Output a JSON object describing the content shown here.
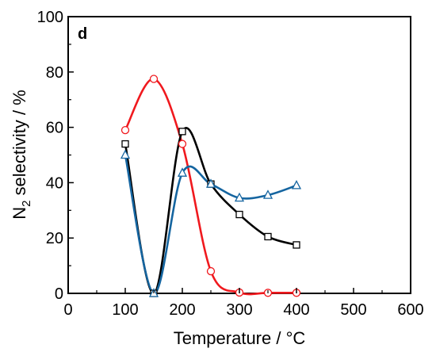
{
  "chart_data": {
    "type": "line",
    "panel_label": "d",
    "xlabel": "Temperature / °C",
    "ylabel_main": "N",
    "ylabel_sub": "2",
    "ylabel_rest": " selectivity / %",
    "xlim": [
      0,
      600
    ],
    "ylim": [
      0,
      100
    ],
    "xticks": [
      0,
      100,
      200,
      300,
      400,
      500,
      600
    ],
    "yticks": [
      0,
      20,
      40,
      60,
      80,
      100
    ],
    "grid": false,
    "series": [
      {
        "marker": "circle",
        "color": "#f0191e",
        "x": [
          100,
          150,
          200,
          250,
          300,
          350,
          400
        ],
        "y": [
          59,
          77.5,
          54,
          8,
          0.3,
          0.2,
          0.2
        ]
      },
      {
        "marker": "square",
        "color": "#000000",
        "x": [
          100,
          150,
          200,
          250,
          300,
          350,
          400
        ],
        "y": [
          54,
          0,
          58.5,
          39.5,
          28.5,
          20.5,
          17.5
        ]
      },
      {
        "marker": "triangle",
        "color": "#1565a0",
        "x": [
          100,
          150,
          200,
          250,
          300,
          350,
          400
        ],
        "y": [
          50,
          0,
          43.5,
          39.5,
          34.5,
          35.5,
          39
        ]
      }
    ]
  }
}
